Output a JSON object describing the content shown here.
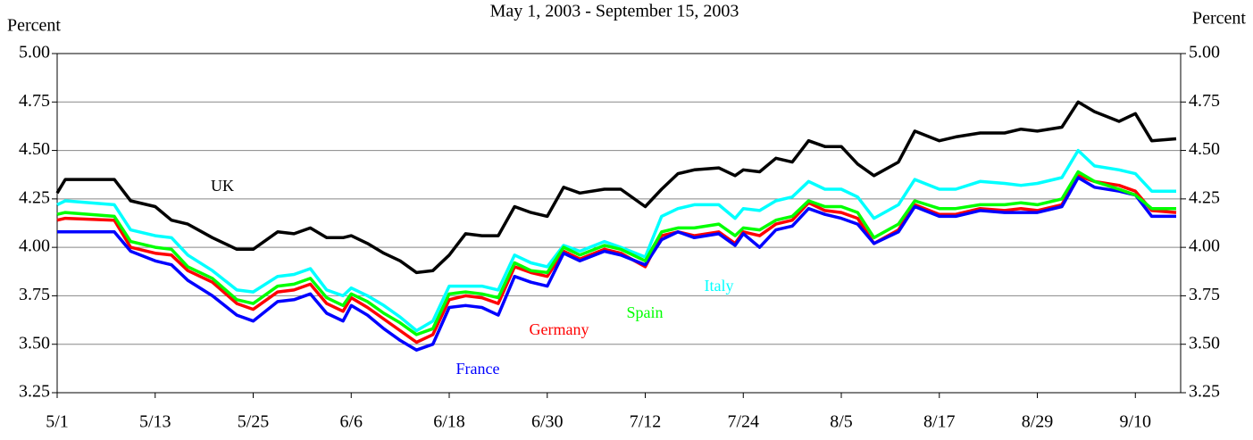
{
  "chart_data": {
    "type": "line",
    "title": "May 1, 2003 - September 15, 2003",
    "ylabel": "Percent",
    "y2label": "Percent",
    "x": [
      "5/1",
      "5/2",
      "5/8",
      "5/10",
      "5/13",
      "5/15",
      "5/17",
      "5/20",
      "5/23",
      "5/25",
      "5/28",
      "5/30",
      "6/1",
      "6/3",
      "6/5",
      "6/6",
      "6/8",
      "6/10",
      "6/12",
      "6/14",
      "6/16",
      "6/18",
      "6/20",
      "6/22",
      "6/24",
      "6/26",
      "6/28",
      "6/30",
      "7/2",
      "7/4",
      "7/7",
      "7/9",
      "7/12",
      "7/14",
      "7/16",
      "7/18",
      "7/21",
      "7/23",
      "7/24",
      "7/26",
      "7/28",
      "7/30",
      "8/1",
      "8/3",
      "8/5",
      "8/7",
      "8/9",
      "8/12",
      "8/14",
      "8/17",
      "8/19",
      "8/22",
      "8/25",
      "8/27",
      "8/29",
      "9/1",
      "9/3",
      "9/5",
      "9/8",
      "9/10",
      "9/12",
      "9/15"
    ],
    "xticks": [
      "5/1",
      "5/13",
      "5/25",
      "6/6",
      "6/18",
      "6/30",
      "7/12",
      "7/24",
      "8/5",
      "8/17",
      "8/29",
      "9/10"
    ],
    "ylim": [
      3.25,
      5.0
    ],
    "yticks": [
      {
        "value": 3.25,
        "label": "3.25"
      },
      {
        "value": 3.5,
        "label": "3.50"
      },
      {
        "value": 3.75,
        "label": "3.75"
      },
      {
        "value": 4.0,
        "label": "4.00"
      },
      {
        "value": 4.25,
        "label": "4.25"
      },
      {
        "value": 4.5,
        "label": "4.50"
      },
      {
        "value": 4.75,
        "label": "4.75"
      },
      {
        "value": 5.0,
        "label": "5.00"
      }
    ],
    "y2lim": [
      3.25,
      5.0
    ],
    "y2ticks": [
      {
        "value": 3.25,
        "label": "3.25"
      },
      {
        "value": 3.5,
        "label": "3.50"
      },
      {
        "value": 3.75,
        "label": "3.75"
      },
      {
        "value": 4.0,
        "label": "4.00"
      },
      {
        "value": 4.25,
        "label": "4.25"
      },
      {
        "value": 4.5,
        "label": "4.50"
      },
      {
        "value": 4.75,
        "label": "4.75"
      },
      {
        "value": 5.0,
        "label": "5.00"
      }
    ],
    "grid": true,
    "series": [
      {
        "name": "UK",
        "color": "#000000",
        "values": [
          4.28,
          4.35,
          4.35,
          4.24,
          4.21,
          4.14,
          4.12,
          4.05,
          3.99,
          3.99,
          4.08,
          4.07,
          4.1,
          4.05,
          4.05,
          4.06,
          4.02,
          3.97,
          3.93,
          3.87,
          3.88,
          3.96,
          4.07,
          4.06,
          4.06,
          4.21,
          4.18,
          4.16,
          4.31,
          4.28,
          4.3,
          4.3,
          4.21,
          4.3,
          4.38,
          4.4,
          4.41,
          4.37,
          4.4,
          4.39,
          4.46,
          4.44,
          4.55,
          4.52,
          4.52,
          4.43,
          4.37,
          4.44,
          4.6,
          4.55,
          4.57,
          4.59,
          4.59,
          4.61,
          4.6,
          4.62,
          4.75,
          4.7,
          4.65,
          4.69,
          4.55,
          4.56
        ]
      },
      {
        "name": "Italy",
        "color": "#00ffff",
        "values": [
          4.22,
          4.24,
          4.22,
          4.09,
          4.06,
          4.05,
          3.96,
          3.88,
          3.78,
          3.77,
          3.85,
          3.86,
          3.89,
          3.78,
          3.75,
          3.79,
          3.75,
          3.7,
          3.64,
          3.57,
          3.62,
          3.8,
          3.8,
          3.8,
          3.78,
          3.96,
          3.92,
          3.9,
          4.01,
          3.98,
          4.03,
          4.0,
          3.95,
          4.16,
          4.2,
          4.22,
          4.22,
          4.15,
          4.2,
          4.19,
          4.24,
          4.26,
          4.34,
          4.3,
          4.3,
          4.26,
          4.15,
          4.22,
          4.35,
          4.3,
          4.3,
          4.34,
          4.33,
          4.32,
          4.33,
          4.36,
          4.5,
          4.42,
          4.4,
          4.38,
          4.29,
          4.29
        ]
      },
      {
        "name": "Germany",
        "color": "#ff0000",
        "values": [
          4.14,
          4.15,
          4.14,
          4.0,
          3.97,
          3.96,
          3.88,
          3.82,
          3.71,
          3.68,
          3.77,
          3.78,
          3.81,
          3.71,
          3.67,
          3.74,
          3.69,
          3.63,
          3.57,
          3.51,
          3.55,
          3.73,
          3.75,
          3.74,
          3.71,
          3.9,
          3.87,
          3.85,
          3.98,
          3.94,
          3.99,
          3.97,
          3.9,
          4.06,
          4.08,
          4.06,
          4.08,
          4.02,
          4.08,
          4.06,
          4.12,
          4.14,
          4.23,
          4.19,
          4.18,
          4.15,
          4.02,
          4.09,
          4.22,
          4.17,
          4.17,
          4.2,
          4.19,
          4.2,
          4.19,
          4.22,
          4.37,
          4.34,
          4.32,
          4.29,
          4.19,
          4.18
        ]
      },
      {
        "name": "France",
        "color": "#0000ff",
        "values": [
          4.08,
          4.08,
          4.08,
          3.98,
          3.93,
          3.91,
          3.83,
          3.75,
          3.65,
          3.62,
          3.72,
          3.73,
          3.76,
          3.66,
          3.62,
          3.7,
          3.65,
          3.58,
          3.52,
          3.47,
          3.5,
          3.69,
          3.7,
          3.69,
          3.65,
          3.85,
          3.82,
          3.8,
          3.97,
          3.93,
          3.98,
          3.96,
          3.91,
          4.04,
          4.08,
          4.05,
          4.07,
          4.01,
          4.07,
          4.0,
          4.09,
          4.11,
          4.2,
          4.17,
          4.15,
          4.12,
          4.02,
          4.08,
          4.21,
          4.16,
          4.16,
          4.19,
          4.18,
          4.18,
          4.18,
          4.21,
          4.36,
          4.31,
          4.29,
          4.27,
          4.16,
          4.16
        ]
      },
      {
        "name": "Spain",
        "color": "#00ff00",
        "values": [
          4.17,
          4.18,
          4.16,
          4.03,
          4.0,
          3.99,
          3.9,
          3.84,
          3.73,
          3.71,
          3.8,
          3.81,
          3.84,
          3.74,
          3.7,
          3.76,
          3.72,
          3.66,
          3.61,
          3.55,
          3.58,
          3.76,
          3.77,
          3.76,
          3.74,
          3.92,
          3.88,
          3.87,
          4.0,
          3.96,
          4.01,
          3.99,
          3.93,
          4.08,
          4.1,
          4.1,
          4.12,
          4.06,
          4.1,
          4.09,
          4.14,
          4.16,
          4.24,
          4.21,
          4.21,
          4.18,
          4.05,
          4.12,
          4.24,
          4.2,
          4.2,
          4.22,
          4.22,
          4.23,
          4.22,
          4.25,
          4.39,
          4.34,
          4.3,
          4.27,
          4.2,
          4.2
        ]
      }
    ]
  }
}
